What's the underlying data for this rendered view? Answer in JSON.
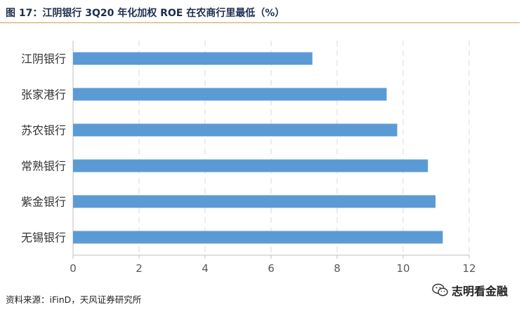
{
  "title": "图 17：江阴银行 3Q20 年化加权 ROE 在农商行里最低（%）",
  "source": "资料来源：iFinD，天风证券研究所",
  "watermark": {
    "text": "志明看金融",
    "icon": "wechat-icon"
  },
  "colors": {
    "bar": "#5b9bd5",
    "grid": "#d9d9d9",
    "axis": "#bfbfbf",
    "rule": "#c7a052",
    "tick_text": "#595959"
  },
  "chart_data": {
    "type": "bar",
    "orientation": "horizontal",
    "title": "江阴银行 3Q20 年化加权 ROE 在农商行里最低（%）",
    "categories": [
      "江阴银行",
      "张家港行",
      "苏农银行",
      "常熟银行",
      "紫金银行",
      "无锡银行"
    ],
    "values": [
      7.25,
      9.5,
      9.82,
      10.75,
      10.98,
      11.2
    ],
    "xlim": [
      0,
      12
    ],
    "xticks": [
      "0",
      "2",
      "4",
      "6",
      "8",
      "10",
      "12"
    ],
    "xlabel": "",
    "ylabel": "",
    "grid": "vertical dashed",
    "legend": "none"
  }
}
